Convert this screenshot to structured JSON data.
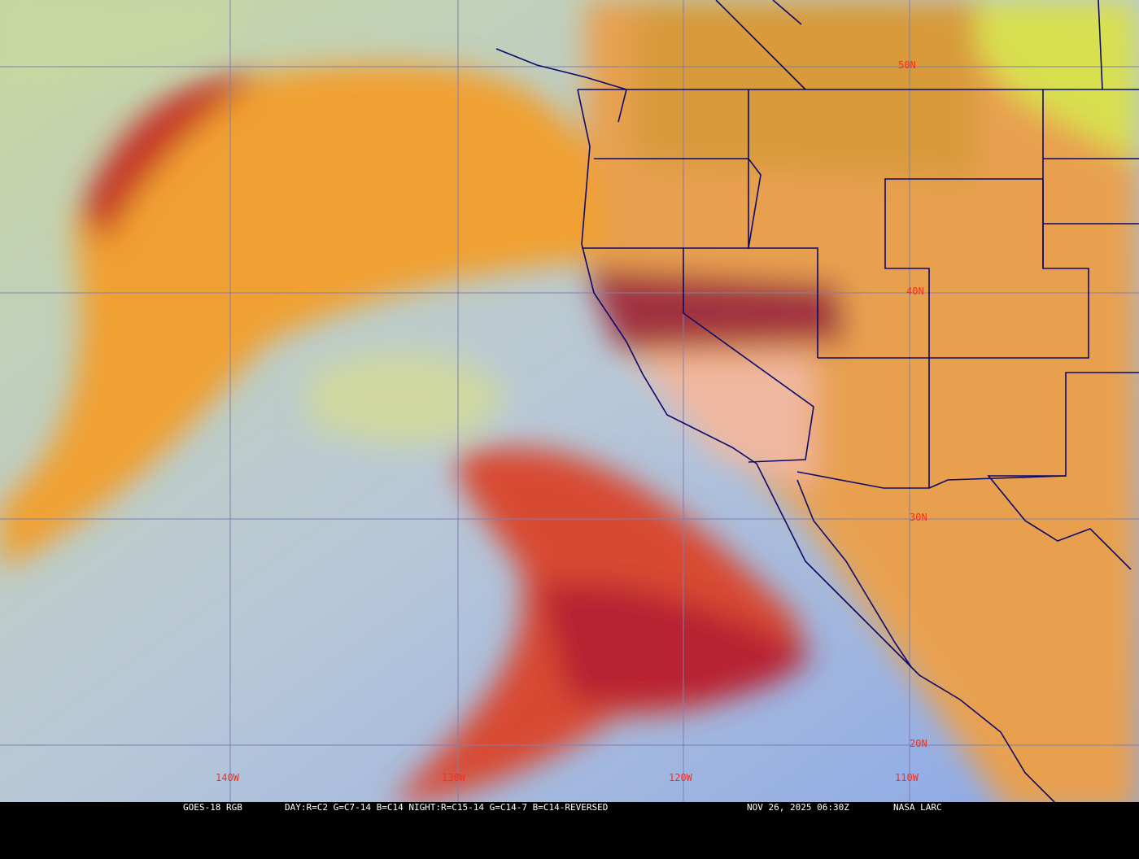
{
  "map": {
    "latitude_labels": [
      "50N",
      "40N",
      "30N",
      "20N"
    ],
    "longitude_labels": [
      "140W",
      "130W",
      "120W",
      "110W"
    ],
    "colors": {
      "grid": "#7f7fb0",
      "borders": "#0a0a6e",
      "labels": "#ff2a1a",
      "ocean": "#9db4e0",
      "land": "#e8a855",
      "cloud_red": "#c0282a",
      "cloud_orange": "#f0a030"
    }
  },
  "footer": {
    "satellite": "GOES-18 RGB",
    "recipe": "DAY:R=C2 G=C7-14 B=C14 NIGHT:R=C15-14 G=C14-7 B=C14-REVERSED",
    "timestamp": "NOV 26, 2025 06:30Z",
    "credit": "NASA LARC"
  }
}
